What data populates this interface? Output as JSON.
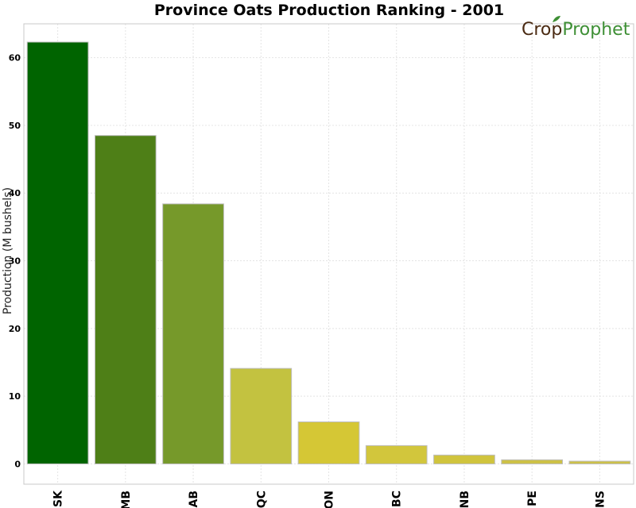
{
  "chart_data": {
    "type": "bar",
    "title": "Province Oats Production Ranking - 2001",
    "xlabel": "",
    "ylabel": "Production (M bushels)",
    "ylim": [
      -3,
      65
    ],
    "yticks": [
      0,
      10,
      20,
      30,
      40,
      50,
      60
    ],
    "grid": true,
    "categories": [
      "SK",
      "MB",
      "AB",
      "QC",
      "ON",
      "BC",
      "NB",
      "PE",
      "NS"
    ],
    "values": [
      62.3,
      48.5,
      38.4,
      14.1,
      6.2,
      2.7,
      1.3,
      0.6,
      0.4
    ],
    "colors": [
      "#006400",
      "#4e7f17",
      "#76992a",
      "#c3c240",
      "#d5c735",
      "#d2c63c",
      "#d0c43d",
      "#cdc146",
      "#cdc146"
    ]
  },
  "branding": {
    "logo_text_1": "Crop",
    "logo_text_2": "Prophet",
    "logo_colors": [
      "#4a2a12",
      "#3e8f35"
    ]
  }
}
